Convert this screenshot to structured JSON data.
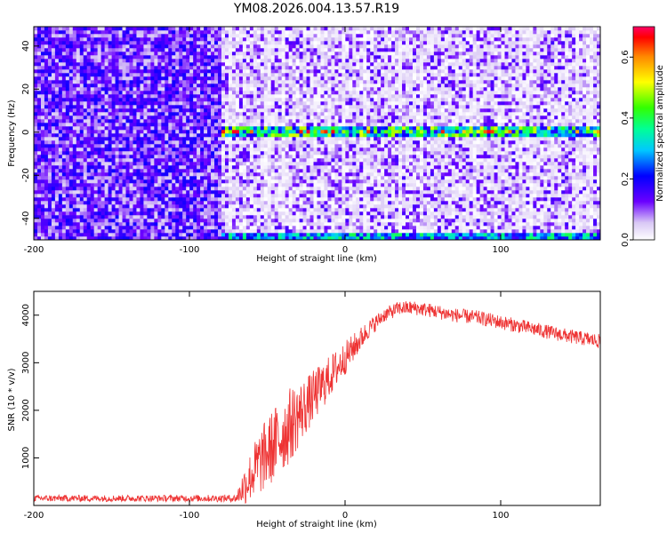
{
  "title": "YM08.2026.004.13.57.R19",
  "chart_data": [
    {
      "type": "heatmap",
      "xlabel": "Height of straight line (km)",
      "ylabel": "Frequency (Hz)",
      "xlim": [
        -200,
        164
      ],
      "ylim": [
        -50,
        49
      ],
      "xticks": [
        -200,
        -100,
        0,
        100
      ],
      "yticks": [
        -40,
        -20,
        0,
        20,
        40
      ],
      "colorbar": {
        "label": "Normalized spectral amplitude",
        "range": [
          0.0,
          0.7
        ],
        "ticks": [
          "0.0",
          "0.2",
          "0.4",
          "0.6"
        ],
        "tick_values": [
          0.0,
          0.2,
          0.4,
          0.6
        ],
        "colormap": "rainbow (white to purple to red)"
      },
      "features": [
        {
          "description": "strong narrow band",
          "frequency": 0,
          "x_range": [
            -80,
            164
          ],
          "peak_amplitude": 0.6
        },
        {
          "description": "band at lower edge",
          "frequency": -49,
          "x_range": [
            -80,
            164
          ]
        }
      ]
    },
    {
      "type": "line",
      "xlabel": "Height of straight line (km)",
      "ylabel": "SNR (10 * v/v)",
      "xlim": [
        -200,
        164
      ],
      "ylim": [
        0,
        4500
      ],
      "xticks": [
        -200,
        -100,
        0,
        100
      ],
      "yticks": [
        1000,
        2000,
        3000,
        4000
      ],
      "color": "#ee3333",
      "series": [
        {
          "x": [
            -200,
            -150,
            -100,
            -70,
            -65,
            -55,
            -45,
            -35,
            -25,
            -15,
            -5,
            5,
            15,
            25,
            35,
            45,
            55,
            70,
            85,
            100,
            115,
            130,
            145,
            164
          ],
          "y": [
            150,
            150,
            150,
            150,
            400,
            900,
            1300,
            1700,
            2100,
            2500,
            2900,
            3300,
            3700,
            4000,
            4150,
            4150,
            4100,
            4000,
            3950,
            3850,
            3750,
            3650,
            3550,
            3450
          ],
          "noise": [
            70,
            70,
            70,
            80,
            400,
            700,
            800,
            800,
            600,
            500,
            400,
            300,
            200,
            150,
            150,
            150,
            150,
            150,
            150,
            150,
            150,
            150,
            150,
            150
          ]
        }
      ]
    }
  ]
}
